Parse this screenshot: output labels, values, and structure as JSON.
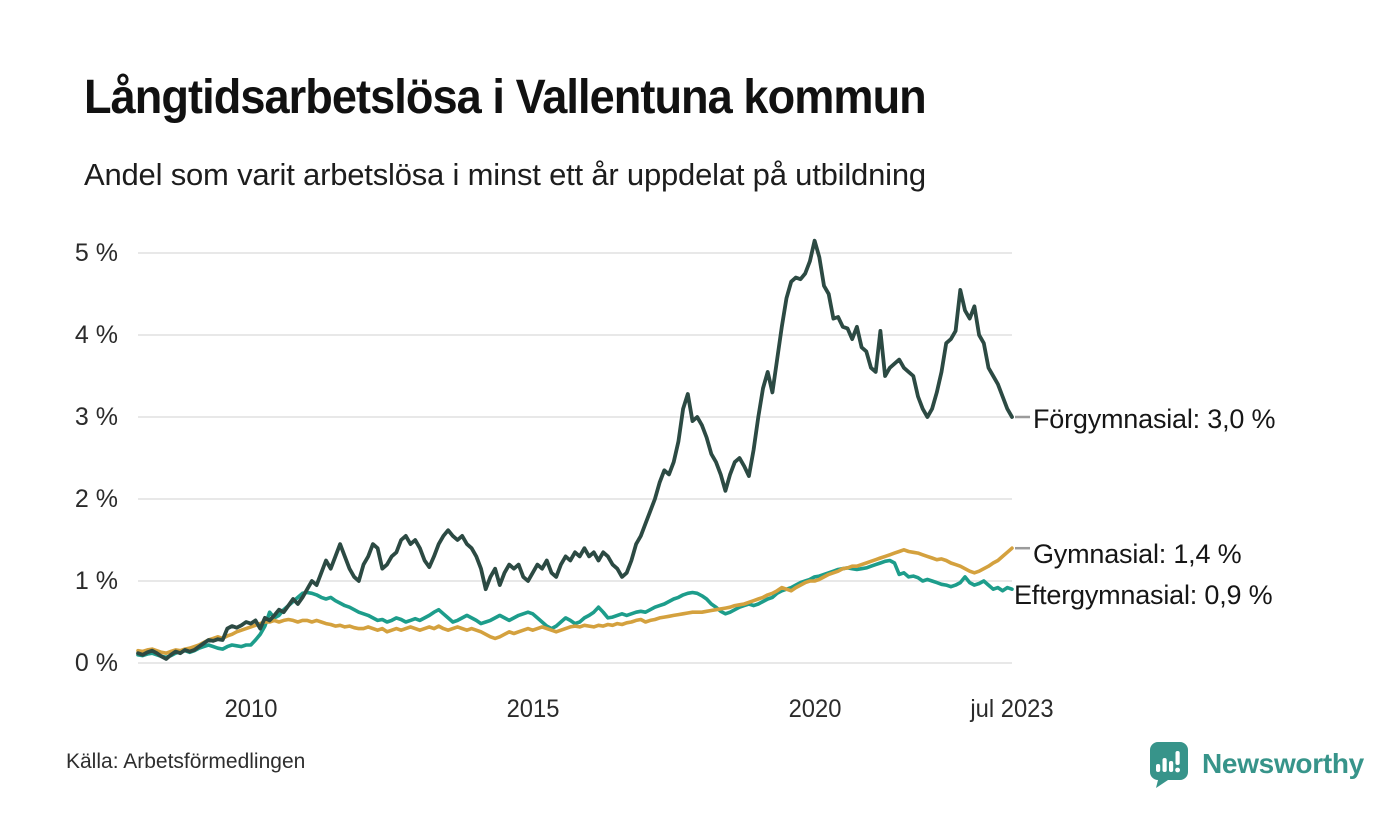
{
  "title": "Långtidsarbetslösa i Vallentuna kommun",
  "subtitle": "Andel som varit arbetslösa i minst ett år uppdelat på utbildning",
  "source": "Källa: Arbetsförmedlingen",
  "branding": {
    "name": "Newsworthy",
    "color": "#37948a"
  },
  "chart_data": {
    "type": "line",
    "x_unit": "monthly",
    "x_start": "2008-01",
    "x_end": "2023-07",
    "xlim": [
      2008.0,
      2023.5
    ],
    "ylim": [
      0,
      5
    ],
    "grid": "horizontal",
    "grid_color": "#e8e8e8",
    "y_ticks": [
      {
        "value": 0,
        "label": "0 %"
      },
      {
        "value": 1,
        "label": "1 %"
      },
      {
        "value": 2,
        "label": "2 %"
      },
      {
        "value": 3,
        "label": "3 %"
      },
      {
        "value": 4,
        "label": "4 %"
      },
      {
        "value": 5,
        "label": "5 %"
      }
    ],
    "x_ticks": [
      {
        "t": 2010.0,
        "label": "2010"
      },
      {
        "t": 2015.0,
        "label": "2015"
      },
      {
        "t": 2020.0,
        "label": "2020"
      },
      {
        "t": 2023.5,
        "label": "jul 2023"
      }
    ],
    "series": [
      {
        "name": "Förgymnasial",
        "color": "#2c4a43",
        "end_label": "Förgymnasial: 3,0 %",
        "end_value_label": "3,0 %",
        "leader_dash": true,
        "values": [
          0.12,
          0.1,
          0.13,
          0.15,
          0.12,
          0.08,
          0.05,
          0.1,
          0.14,
          0.12,
          0.16,
          0.14,
          0.16,
          0.2,
          0.24,
          0.28,
          0.27,
          0.29,
          0.28,
          0.42,
          0.45,
          0.43,
          0.46,
          0.5,
          0.48,
          0.52,
          0.42,
          0.55,
          0.52,
          0.58,
          0.65,
          0.62,
          0.7,
          0.78,
          0.72,
          0.8,
          0.9,
          1.0,
          0.95,
          1.1,
          1.25,
          1.15,
          1.3,
          1.45,
          1.3,
          1.15,
          1.05,
          1.0,
          1.2,
          1.3,
          1.45,
          1.4,
          1.15,
          1.2,
          1.3,
          1.35,
          1.5,
          1.55,
          1.45,
          1.5,
          1.4,
          1.25,
          1.17,
          1.3,
          1.45,
          1.55,
          1.62,
          1.55,
          1.5,
          1.55,
          1.45,
          1.4,
          1.3,
          1.15,
          0.9,
          1.05,
          1.15,
          0.95,
          1.1,
          1.2,
          1.15,
          1.2,
          1.05,
          1.0,
          1.1,
          1.2,
          1.15,
          1.25,
          1.1,
          1.05,
          1.2,
          1.3,
          1.25,
          1.35,
          1.3,
          1.4,
          1.3,
          1.35,
          1.25,
          1.35,
          1.3,
          1.2,
          1.15,
          1.05,
          1.1,
          1.25,
          1.45,
          1.55,
          1.7,
          1.85,
          2.0,
          2.2,
          2.35,
          2.3,
          2.45,
          2.7,
          3.1,
          3.28,
          2.95,
          3.0,
          2.9,
          2.75,
          2.55,
          2.45,
          2.3,
          2.1,
          2.3,
          2.45,
          2.5,
          2.4,
          2.28,
          2.6,
          3.0,
          3.35,
          3.55,
          3.3,
          3.7,
          4.1,
          4.45,
          4.65,
          4.7,
          4.68,
          4.75,
          4.9,
          5.15,
          4.95,
          4.6,
          4.5,
          4.2,
          4.22,
          4.1,
          4.08,
          3.95,
          4.1,
          3.85,
          3.8,
          3.6,
          3.55,
          4.05,
          3.5,
          3.6,
          3.65,
          3.7,
          3.6,
          3.55,
          3.5,
          3.25,
          3.1,
          3.0,
          3.1,
          3.3,
          3.55,
          3.9,
          3.95,
          4.05,
          4.55,
          4.3,
          4.2,
          4.35,
          4.0,
          3.9,
          3.6,
          3.5,
          3.4,
          3.25,
          3.1,
          3.0
        ]
      },
      {
        "name": "Gymnasial",
        "color": "#d4a13e",
        "end_label": "Gymnasial: 1,4 %",
        "end_value_label": "1,4 %",
        "leader_dash": true,
        "values": [
          0.15,
          0.14,
          0.16,
          0.17,
          0.15,
          0.13,
          0.12,
          0.14,
          0.16,
          0.15,
          0.17,
          0.18,
          0.2,
          0.22,
          0.25,
          0.28,
          0.3,
          0.32,
          0.3,
          0.33,
          0.35,
          0.38,
          0.4,
          0.42,
          0.44,
          0.46,
          0.48,
          0.5,
          0.5,
          0.52,
          0.5,
          0.52,
          0.53,
          0.52,
          0.5,
          0.52,
          0.52,
          0.5,
          0.52,
          0.5,
          0.48,
          0.47,
          0.45,
          0.46,
          0.44,
          0.45,
          0.43,
          0.42,
          0.42,
          0.44,
          0.42,
          0.4,
          0.42,
          0.38,
          0.4,
          0.42,
          0.4,
          0.42,
          0.44,
          0.42,
          0.4,
          0.42,
          0.44,
          0.42,
          0.45,
          0.42,
          0.4,
          0.42,
          0.44,
          0.42,
          0.4,
          0.42,
          0.4,
          0.38,
          0.35,
          0.32,
          0.3,
          0.32,
          0.35,
          0.38,
          0.36,
          0.38,
          0.4,
          0.42,
          0.4,
          0.42,
          0.44,
          0.42,
          0.4,
          0.38,
          0.4,
          0.42,
          0.44,
          0.45,
          0.44,
          0.46,
          0.45,
          0.44,
          0.46,
          0.45,
          0.47,
          0.46,
          0.48,
          0.47,
          0.49,
          0.5,
          0.52,
          0.53,
          0.5,
          0.52,
          0.53,
          0.55,
          0.56,
          0.57,
          0.58,
          0.59,
          0.6,
          0.61,
          0.62,
          0.62,
          0.62,
          0.63,
          0.64,
          0.65,
          0.66,
          0.67,
          0.68,
          0.7,
          0.71,
          0.72,
          0.74,
          0.76,
          0.78,
          0.8,
          0.83,
          0.85,
          0.88,
          0.92,
          0.9,
          0.88,
          0.92,
          0.95,
          0.98,
          1.0,
          1.0,
          1.02,
          1.05,
          1.08,
          1.1,
          1.12,
          1.15,
          1.16,
          1.18,
          1.18,
          1.2,
          1.22,
          1.24,
          1.26,
          1.28,
          1.3,
          1.32,
          1.34,
          1.36,
          1.38,
          1.36,
          1.35,
          1.34,
          1.32,
          1.3,
          1.28,
          1.26,
          1.27,
          1.25,
          1.22,
          1.2,
          1.18,
          1.15,
          1.12,
          1.1,
          1.12,
          1.15,
          1.18,
          1.22,
          1.25,
          1.3,
          1.35,
          1.4
        ]
      },
      {
        "name": "Eftergymnasial",
        "color": "#1d9d8b",
        "end_label": "Eftergymnasial: 0,9 %",
        "end_value_label": "0,9 %",
        "leader_dash": false,
        "values": [
          0.1,
          0.09,
          0.11,
          0.12,
          0.1,
          0.08,
          0.07,
          0.09,
          0.12,
          0.14,
          0.15,
          0.13,
          0.15,
          0.18,
          0.2,
          0.22,
          0.2,
          0.18,
          0.17,
          0.2,
          0.22,
          0.21,
          0.2,
          0.22,
          0.22,
          0.28,
          0.35,
          0.45,
          0.62,
          0.55,
          0.58,
          0.65,
          0.7,
          0.75,
          0.8,
          0.85,
          0.86,
          0.85,
          0.83,
          0.8,
          0.78,
          0.8,
          0.76,
          0.73,
          0.7,
          0.68,
          0.65,
          0.62,
          0.6,
          0.58,
          0.55,
          0.52,
          0.53,
          0.5,
          0.52,
          0.55,
          0.53,
          0.5,
          0.52,
          0.54,
          0.52,
          0.55,
          0.58,
          0.62,
          0.65,
          0.6,
          0.55,
          0.5,
          0.52,
          0.55,
          0.58,
          0.55,
          0.52,
          0.48,
          0.5,
          0.52,
          0.55,
          0.58,
          0.55,
          0.52,
          0.55,
          0.58,
          0.6,
          0.62,
          0.6,
          0.55,
          0.5,
          0.45,
          0.42,
          0.45,
          0.5,
          0.55,
          0.52,
          0.48,
          0.5,
          0.55,
          0.58,
          0.62,
          0.68,
          0.62,
          0.55,
          0.56,
          0.58,
          0.6,
          0.58,
          0.6,
          0.62,
          0.63,
          0.62,
          0.65,
          0.68,
          0.7,
          0.72,
          0.75,
          0.78,
          0.8,
          0.83,
          0.85,
          0.86,
          0.85,
          0.82,
          0.78,
          0.72,
          0.68,
          0.63,
          0.6,
          0.62,
          0.65,
          0.68,
          0.7,
          0.72,
          0.7,
          0.72,
          0.75,
          0.78,
          0.8,
          0.85,
          0.88,
          0.9,
          0.92,
          0.95,
          0.98,
          1.0,
          1.02,
          1.05,
          1.06,
          1.08,
          1.1,
          1.12,
          1.14,
          1.15,
          1.16,
          1.15,
          1.14,
          1.15,
          1.16,
          1.18,
          1.2,
          1.22,
          1.24,
          1.25,
          1.22,
          1.08,
          1.1,
          1.05,
          1.06,
          1.04,
          1.0,
          1.02,
          1.0,
          0.98,
          0.96,
          0.95,
          0.93,
          0.95,
          0.98,
          1.05,
          0.98,
          0.95,
          0.97,
          1.0,
          0.95,
          0.9,
          0.92,
          0.88,
          0.92,
          0.9
        ]
      }
    ]
  }
}
